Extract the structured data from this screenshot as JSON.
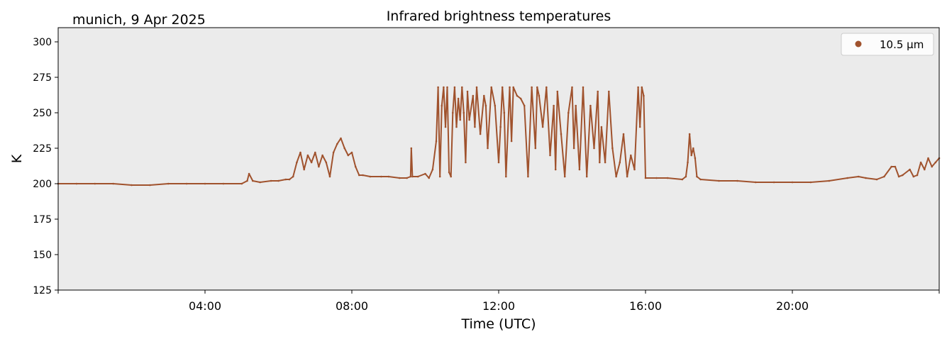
{
  "location_date": "munich, 9 Apr 2025",
  "chart_data": {
    "type": "scatter",
    "title": "Infrared brightness temperatures",
    "xlabel": "Time (UTC)",
    "ylabel": "K",
    "xlim": [
      0,
      24
    ],
    "ylim": [
      125,
      310
    ],
    "x_ticks": [
      4,
      8,
      12,
      16,
      20
    ],
    "x_tick_labels": [
      "04:00",
      "08:00",
      "12:00",
      "16:00",
      "20:00"
    ],
    "y_ticks": [
      125,
      150,
      175,
      200,
      225,
      250,
      275,
      300
    ],
    "y_tick_labels": [
      "125",
      "150",
      "175",
      "200",
      "225",
      "250",
      "275",
      "300"
    ],
    "grid": false,
    "legend": "top-right",
    "background": "#ebebeb",
    "series": [
      {
        "name": "10.5 µm",
        "color": "#a0522d",
        "x": [
          0.0,
          0.5,
          1.0,
          1.5,
          2.0,
          2.5,
          3.0,
          3.5,
          4.0,
          4.5,
          5.0,
          5.15,
          5.2,
          5.3,
          5.5,
          5.8,
          6.0,
          6.2,
          6.3,
          6.4,
          6.5,
          6.6,
          6.7,
          6.8,
          6.9,
          7.0,
          7.1,
          7.2,
          7.3,
          7.4,
          7.5,
          7.6,
          7.7,
          7.8,
          7.9,
          8.0,
          8.1,
          8.2,
          8.3,
          8.5,
          8.8,
          9.0,
          9.3,
          9.5,
          9.6,
          9.62,
          9.65,
          9.8,
          10.0,
          10.1,
          10.2,
          10.3,
          10.35,
          10.4,
          10.45,
          10.5,
          10.55,
          10.6,
          10.65,
          10.7,
          10.75,
          10.8,
          10.85,
          10.9,
          10.95,
          11.0,
          11.05,
          11.1,
          11.15,
          11.2,
          11.3,
          11.35,
          11.4,
          11.5,
          11.6,
          11.65,
          11.7,
          11.8,
          11.9,
          12.0,
          12.05,
          12.1,
          12.15,
          12.2,
          12.3,
          12.35,
          12.4,
          12.5,
          12.6,
          12.7,
          12.8,
          12.9,
          13.0,
          13.05,
          13.1,
          13.2,
          13.3,
          13.4,
          13.5,
          13.55,
          13.6,
          13.7,
          13.8,
          13.9,
          14.0,
          14.05,
          14.1,
          14.2,
          14.3,
          14.4,
          14.5,
          14.6,
          14.7,
          14.75,
          14.8,
          14.9,
          15.0,
          15.1,
          15.2,
          15.3,
          15.4,
          15.5,
          15.6,
          15.7,
          15.8,
          15.85,
          15.9,
          15.95,
          16.0,
          16.3,
          16.6,
          17.0,
          17.1,
          17.15,
          17.2,
          17.25,
          17.3,
          17.35,
          17.4,
          17.5,
          18.0,
          18.5,
          19.0,
          19.5,
          20.0,
          20.5,
          21.0,
          21.5,
          21.8,
          22.0,
          22.3,
          22.5,
          22.7,
          22.8,
          22.9,
          23.0,
          23.2,
          23.3,
          23.4,
          23.5,
          23.6,
          23.7,
          23.8,
          23.9,
          24.0
        ],
        "y": [
          200,
          200,
          200,
          200,
          199,
          199,
          200,
          200,
          200,
          200,
          200,
          202,
          207,
          202,
          201,
          202,
          202,
          203,
          203,
          205,
          215,
          222,
          210,
          220,
          215,
          222,
          212,
          220,
          215,
          205,
          222,
          228,
          232,
          225,
          220,
          222,
          212,
          206,
          206,
          205,
          205,
          205,
          204,
          204,
          205,
          225,
          205,
          205,
          207,
          204,
          210,
          230,
          268,
          205,
          255,
          268,
          240,
          268,
          208,
          205,
          250,
          268,
          240,
          260,
          245,
          268,
          250,
          215,
          265,
          245,
          262,
          240,
          268,
          235,
          262,
          255,
          225,
          268,
          255,
          215,
          240,
          268,
          250,
          205,
          268,
          230,
          268,
          262,
          260,
          255,
          205,
          268,
          225,
          268,
          262,
          240,
          268,
          220,
          255,
          210,
          265,
          235,
          205,
          250,
          268,
          225,
          255,
          210,
          268,
          205,
          255,
          225,
          265,
          215,
          240,
          215,
          265,
          225,
          205,
          215,
          235,
          205,
          220,
          210,
          268,
          240,
          268,
          262,
          204,
          204,
          204,
          203,
          205,
          215,
          235,
          220,
          225,
          218,
          205,
          203,
          202,
          202,
          201,
          201,
          201,
          201,
          202,
          204,
          205,
          204,
          203,
          205,
          212,
          212,
          205,
          206,
          210,
          205,
          206,
          215,
          210,
          218,
          212,
          215,
          218
        ]
      }
    ]
  }
}
